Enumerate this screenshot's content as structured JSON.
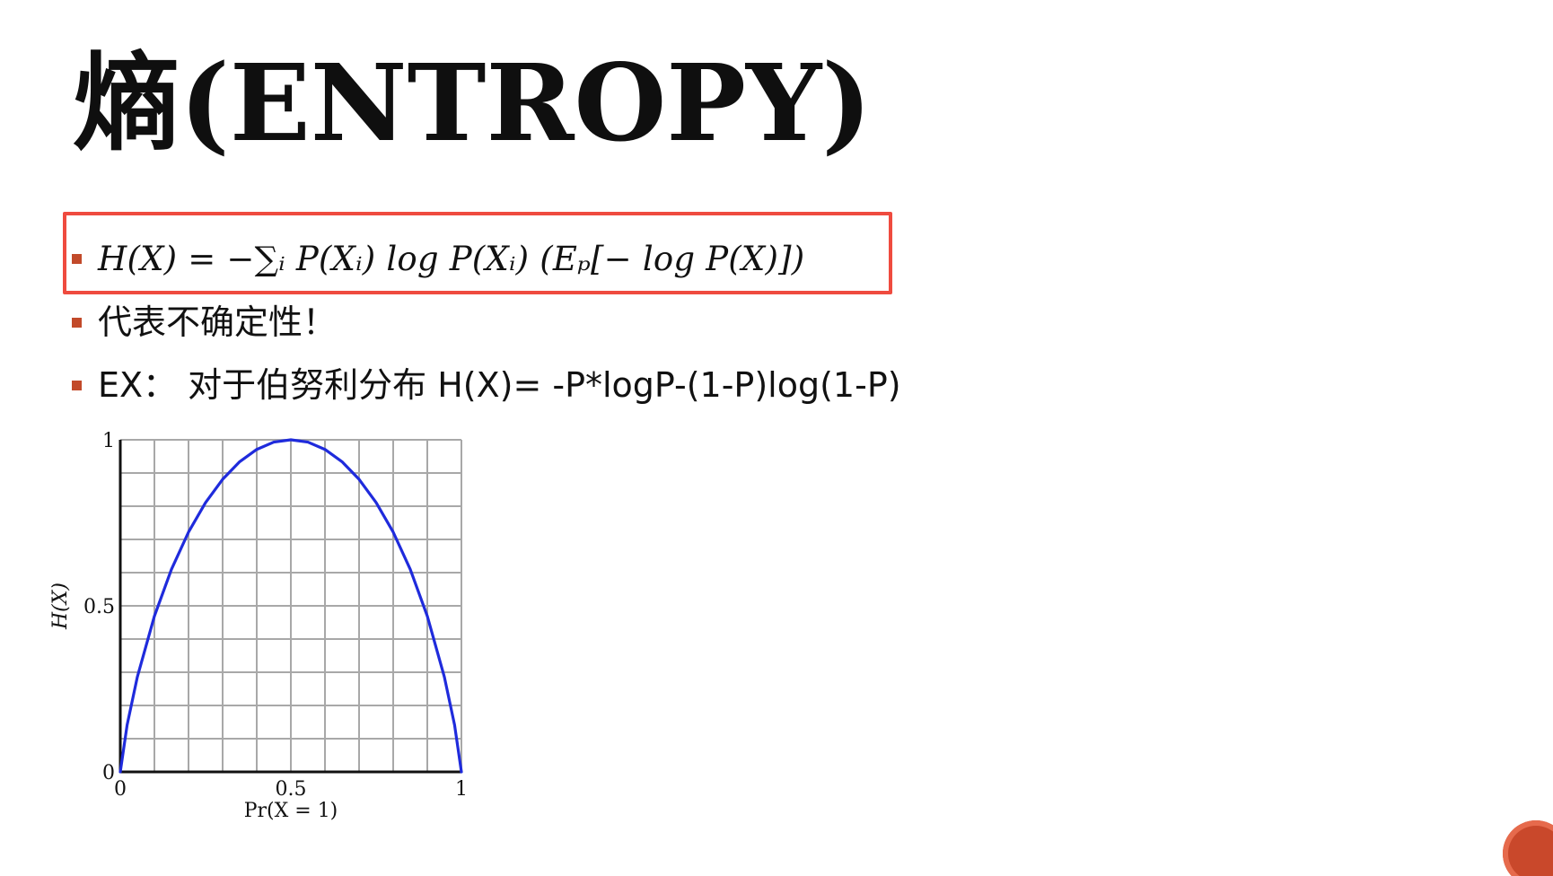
{
  "slide": {
    "title": "熵(ENTROPY)",
    "bullets": [
      {
        "text": "H(X) = −∑ᵢ P(Xᵢ) log P(Xᵢ)    (Eₚ[− log P(X)])",
        "highlighted": true
      },
      {
        "text": "代表不确定性！"
      },
      {
        "text": "EX： 对于伯努利分布 H(X)= -P*logP-(1-P)log(1-P)"
      }
    ],
    "colors": {
      "highlight_border": "#ef4b3f",
      "bullet_marker": "#c24a2a",
      "curve": "#1f2bdc"
    },
    "corner_decor": "orange-circle-icon"
  },
  "chart_data": {
    "type": "line",
    "title": "",
    "xlabel": "Pr(X = 1)",
    "ylabel": "H(X)",
    "xlim": [
      0,
      1
    ],
    "ylim": [
      0,
      1
    ],
    "grid": true,
    "x_ticks": [
      "0",
      "0.5",
      "1"
    ],
    "y_ticks": [
      "0",
      "0.5",
      "1"
    ],
    "series": [
      {
        "x": [
          0,
          0.02,
          0.05,
          0.1,
          0.15,
          0.2,
          0.25,
          0.3,
          0.35,
          0.4,
          0.45,
          0.5,
          0.55,
          0.6,
          0.65,
          0.7,
          0.75,
          0.8,
          0.85,
          0.9,
          0.95,
          0.98,
          1
        ],
        "values": [
          0,
          0.141,
          0.286,
          0.469,
          0.61,
          0.722,
          0.811,
          0.881,
          0.934,
          0.971,
          0.993,
          1,
          0.993,
          0.971,
          0.934,
          0.881,
          0.811,
          0.722,
          0.61,
          0.469,
          0.286,
          0.141,
          0
        ]
      }
    ]
  }
}
